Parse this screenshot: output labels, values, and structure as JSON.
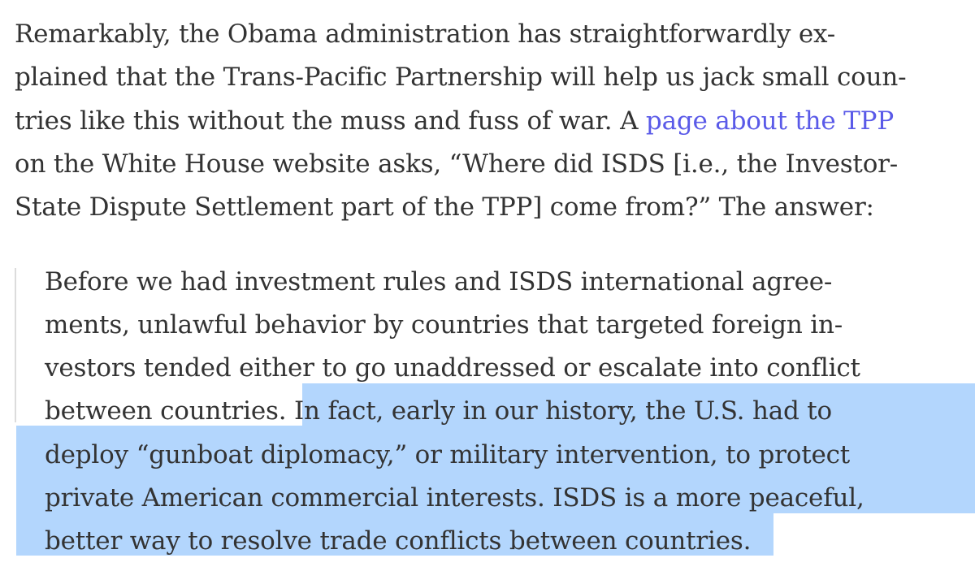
{
  "paragraph": {
    "line1": "Remarkably, the Obama administration has straightforwardly ex-",
    "line2": "plained that the Trans-Pacific Partnership will help us jack small coun-",
    "line3_before_link": "tries like this without the muss and fuss of war. A ",
    "link_text": "page about the TPP",
    "line4": "on the White House website asks, “Where did ISDS [i.e., the Investor-",
    "line5": "State Dispute Settlement part of the TPP] come from?” The answer:"
  },
  "quote": {
    "line1": "Before we had investment rules and ISDS international agree-",
    "line2": "ments, unlawful behavior by countries that targeted foreign in-",
    "line3": "vestors tended either to go unaddressed or escalate into conflict",
    "line4_plain": "between countries. ",
    "line4_highlighted": "In fact, early in our history, the U.S. had to",
    "line5": "deploy “gunboat diplomacy,” or military intervention, to protect",
    "line6": "private American commercial interests. ISDS is a more peaceful,",
    "line7": "better way to resolve trade conflicts between countries."
  },
  "colors": {
    "text": "#333333",
    "link": "#5a5ae8",
    "highlight": "#b3d6fd",
    "quote_bar": "#dcdcdc"
  }
}
